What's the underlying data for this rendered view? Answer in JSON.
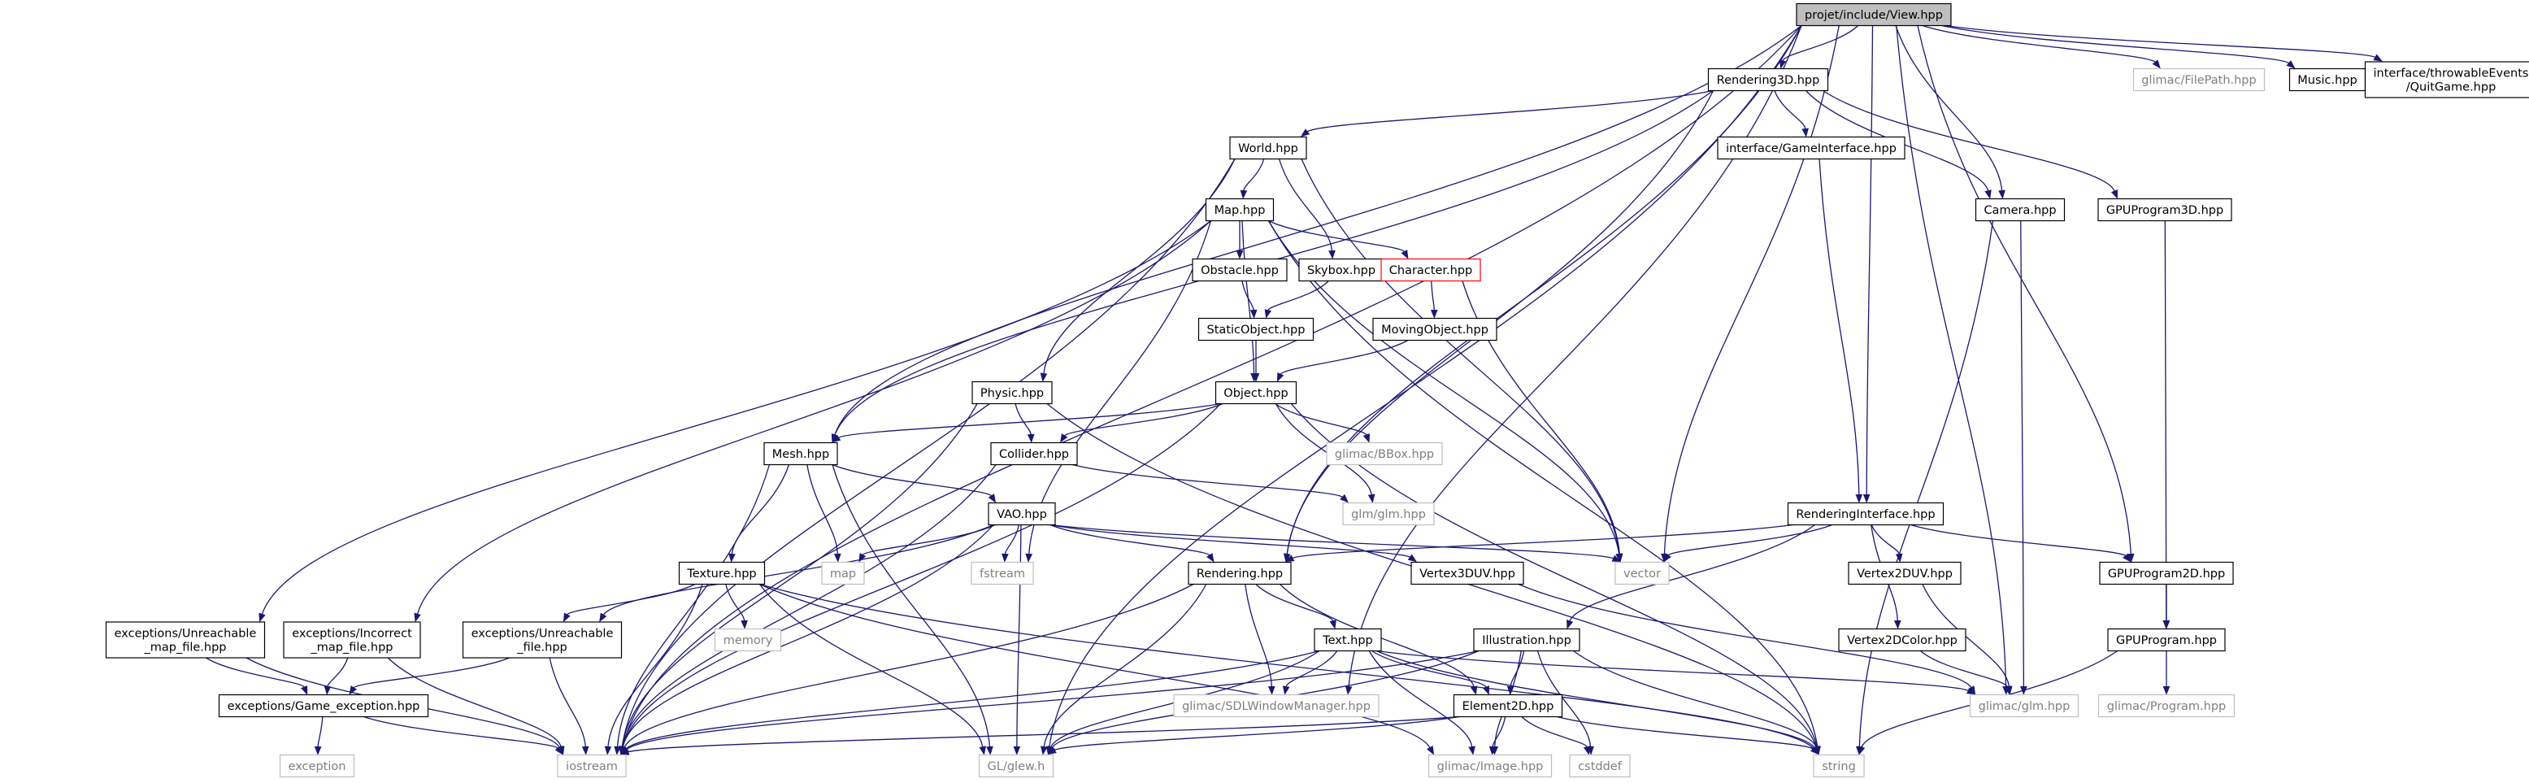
{
  "title": "projet/include/View.hpp",
  "colors": {
    "edge": "#191970",
    "root_fill": "#bfbfbf",
    "node_border": "#000000",
    "external_border": "#bfbfbf",
    "external_text": "#7f7f7f",
    "highlight_border": "#ff0000"
  },
  "nodes": [
    {
      "id": "view",
      "lines": [
        "projet/include/View.hpp"
      ],
      "style": "root"
    },
    {
      "id": "rendering3d",
      "lines": [
        "Rendering3D.hpp"
      ],
      "style": "normal"
    },
    {
      "id": "filepath",
      "lines": [
        "glimac/FilePath.hpp"
      ],
      "style": "external"
    },
    {
      "id": "music",
      "lines": [
        "Music.hpp"
      ],
      "style": "normal"
    },
    {
      "id": "quitgame",
      "lines": [
        "interface/throwableEvents",
        "/QuitGame.hpp"
      ],
      "style": "normal"
    },
    {
      "id": "world",
      "lines": [
        "World.hpp"
      ],
      "style": "normal"
    },
    {
      "id": "gameinterface",
      "lines": [
        "interface/GameInterface.hpp"
      ],
      "style": "normal"
    },
    {
      "id": "map",
      "lines": [
        "Map.hpp"
      ],
      "style": "normal"
    },
    {
      "id": "camera",
      "lines": [
        "Camera.hpp"
      ],
      "style": "normal"
    },
    {
      "id": "gpuprogram3d",
      "lines": [
        "GPUProgram3D.hpp"
      ],
      "style": "normal"
    },
    {
      "id": "obstacle",
      "lines": [
        "Obstacle.hpp"
      ],
      "style": "normal"
    },
    {
      "id": "skybox",
      "lines": [
        "Skybox.hpp"
      ],
      "style": "normal"
    },
    {
      "id": "character",
      "lines": [
        "Character.hpp"
      ],
      "style": "highlight"
    },
    {
      "id": "staticobject",
      "lines": [
        "StaticObject.hpp"
      ],
      "style": "normal"
    },
    {
      "id": "movingobject",
      "lines": [
        "MovingObject.hpp"
      ],
      "style": "normal"
    },
    {
      "id": "physic",
      "lines": [
        "Physic.hpp"
      ],
      "style": "normal"
    },
    {
      "id": "object",
      "lines": [
        "Object.hpp"
      ],
      "style": "normal"
    },
    {
      "id": "mesh",
      "lines": [
        "Mesh.hpp"
      ],
      "style": "normal"
    },
    {
      "id": "collider",
      "lines": [
        "Collider.hpp"
      ],
      "style": "normal"
    },
    {
      "id": "bbox",
      "lines": [
        "glimac/BBox.hpp"
      ],
      "style": "external"
    },
    {
      "id": "glmglm",
      "lines": [
        "glm/glm.hpp"
      ],
      "style": "external"
    },
    {
      "id": "vao",
      "lines": [
        "VAO.hpp"
      ],
      "style": "normal"
    },
    {
      "id": "renderinginterface",
      "lines": [
        "RenderingInterface.hpp"
      ],
      "style": "normal"
    },
    {
      "id": "mapstd",
      "lines": [
        "map"
      ],
      "style": "external"
    },
    {
      "id": "fstream",
      "lines": [
        "fstream"
      ],
      "style": "external"
    },
    {
      "id": "rendering",
      "lines": [
        "Rendering.hpp"
      ],
      "style": "normal"
    },
    {
      "id": "vertex3duv",
      "lines": [
        "Vertex3DUV.hpp"
      ],
      "style": "normal"
    },
    {
      "id": "vector",
      "lines": [
        "vector"
      ],
      "style": "external"
    },
    {
      "id": "vertex2duv",
      "lines": [
        "Vertex2DUV.hpp"
      ],
      "style": "normal"
    },
    {
      "id": "gpuprogram2d",
      "lines": [
        "GPUProgram2D.hpp"
      ],
      "style": "normal"
    },
    {
      "id": "texture",
      "lines": [
        "Texture.hpp"
      ],
      "style": "normal"
    },
    {
      "id": "memory",
      "lines": [
        "memory"
      ],
      "style": "external"
    },
    {
      "id": "unreach_map",
      "lines": [
        "exceptions/Unreachable",
        "_map_file.hpp"
      ],
      "style": "normal"
    },
    {
      "id": "incorrect_map",
      "lines": [
        "exceptions/Incorrect",
        "_map_file.hpp"
      ],
      "style": "normal"
    },
    {
      "id": "unreach_file",
      "lines": [
        "exceptions/Unreachable",
        "_file.hpp"
      ],
      "style": "normal"
    },
    {
      "id": "illustration",
      "lines": [
        "Illustration.hpp"
      ],
      "style": "normal"
    },
    {
      "id": "text",
      "lines": [
        "Text.hpp"
      ],
      "style": "normal"
    },
    {
      "id": "vertex2dcolor",
      "lines": [
        "Vertex2DColor.hpp"
      ],
      "style": "normal"
    },
    {
      "id": "gpuprogram",
      "lines": [
        "GPUProgram.hpp"
      ],
      "style": "normal"
    },
    {
      "id": "game_exception",
      "lines": [
        "exceptions/Game_exception.hpp"
      ],
      "style": "normal"
    },
    {
      "id": "sdlwm",
      "lines": [
        "glimac/SDLWindowManager.hpp"
      ],
      "style": "external"
    },
    {
      "id": "element2d",
      "lines": [
        "Element2D.hpp"
      ],
      "style": "normal"
    },
    {
      "id": "glimacglm",
      "lines": [
        "glimac/glm.hpp"
      ],
      "style": "external"
    },
    {
      "id": "program",
      "lines": [
        "glimac/Program.hpp"
      ],
      "style": "external"
    },
    {
      "id": "exception",
      "lines": [
        "exception"
      ],
      "style": "external"
    },
    {
      "id": "iostream",
      "lines": [
        "iostream"
      ],
      "style": "external"
    },
    {
      "id": "glew",
      "lines": [
        "GL/glew.h"
      ],
      "style": "external"
    },
    {
      "id": "image",
      "lines": [
        "glimac/Image.hpp"
      ],
      "style": "external"
    },
    {
      "id": "cstddef",
      "lines": [
        "cstddef"
      ],
      "style": "external"
    },
    {
      "id": "string",
      "lines": [
        "string"
      ],
      "style": "external"
    }
  ],
  "edges": [
    [
      "view",
      "rendering3d"
    ],
    [
      "view",
      "filepath"
    ],
    [
      "view",
      "music"
    ],
    [
      "view",
      "quitgame"
    ],
    [
      "view",
      "camera"
    ],
    [
      "view",
      "gpuprogram2d"
    ],
    [
      "view",
      "renderinginterface"
    ],
    [
      "view",
      "vector"
    ],
    [
      "view",
      "glimacglm"
    ],
    [
      "view",
      "mesh"
    ],
    [
      "view",
      "iostream"
    ],
    [
      "view",
      "glew"
    ],
    [
      "view",
      "rendering"
    ],
    [
      "view",
      "sdlwm"
    ],
    [
      "rendering3d",
      "world"
    ],
    [
      "rendering3d",
      "gameinterface"
    ],
    [
      "rendering3d",
      "camera"
    ],
    [
      "rendering3d",
      "gpuprogram3d"
    ],
    [
      "rendering3d",
      "rendering"
    ],
    [
      "rendering3d",
      "mesh"
    ],
    [
      "world",
      "map"
    ],
    [
      "world",
      "skybox"
    ],
    [
      "world",
      "physic"
    ],
    [
      "world",
      "vector"
    ],
    [
      "world",
      "iostream"
    ],
    [
      "gameinterface",
      "renderinginterface"
    ],
    [
      "map",
      "obstacle"
    ],
    [
      "map",
      "character"
    ],
    [
      "map",
      "object"
    ],
    [
      "map",
      "vector"
    ],
    [
      "map",
      "string"
    ],
    [
      "map",
      "fstream"
    ],
    [
      "map",
      "unreach_map"
    ],
    [
      "map",
      "incorrect_map"
    ],
    [
      "camera",
      "glimacglm"
    ],
    [
      "camera",
      "string"
    ],
    [
      "gpuprogram3d",
      "gpuprogram"
    ],
    [
      "obstacle",
      "staticobject"
    ],
    [
      "skybox",
      "staticobject"
    ],
    [
      "character",
      "movingobject"
    ],
    [
      "character",
      "vector"
    ],
    [
      "staticobject",
      "object"
    ],
    [
      "movingobject",
      "object"
    ],
    [
      "physic",
      "collider"
    ],
    [
      "physic",
      "iostream"
    ],
    [
      "physic",
      "string"
    ],
    [
      "object",
      "mesh"
    ],
    [
      "object",
      "collider"
    ],
    [
      "object",
      "bbox"
    ],
    [
      "object",
      "glmglm"
    ],
    [
      "object",
      "iostream"
    ],
    [
      "object",
      "string"
    ],
    [
      "mesh",
      "vao"
    ],
    [
      "mesh",
      "texture"
    ],
    [
      "mesh",
      "mapstd"
    ],
    [
      "mesh",
      "glew"
    ],
    [
      "mesh",
      "iostream"
    ],
    [
      "collider",
      "glmglm"
    ],
    [
      "collider",
      "iostream"
    ],
    [
      "vao",
      "mapstd"
    ],
    [
      "vao",
      "fstream"
    ],
    [
      "vao",
      "rendering"
    ],
    [
      "vao",
      "vertex3duv"
    ],
    [
      "vao",
      "vector"
    ],
    [
      "vao",
      "iostream"
    ],
    [
      "vao",
      "glew"
    ],
    [
      "vao",
      "unreach_file"
    ],
    [
      "renderinginterface",
      "rendering"
    ],
    [
      "renderinginterface",
      "vector"
    ],
    [
      "renderinginterface",
      "vertex2duv"
    ],
    [
      "renderinginterface",
      "vertex2dcolor"
    ],
    [
      "renderinginterface",
      "illustration"
    ],
    [
      "renderinginterface",
      "gpuprogram2d"
    ],
    [
      "rendering",
      "text"
    ],
    [
      "rendering",
      "element2d"
    ],
    [
      "rendering",
      "sdlwm"
    ],
    [
      "rendering",
      "glew"
    ],
    [
      "rendering",
      "iostream"
    ],
    [
      "vertex3duv",
      "glimacglm"
    ],
    [
      "vertex2duv",
      "glimacglm"
    ],
    [
      "vertex2dcolor",
      "glimacglm"
    ],
    [
      "gpuprogram2d",
      "gpuprogram"
    ],
    [
      "texture",
      "memory"
    ],
    [
      "texture",
      "unreach_file"
    ],
    [
      "texture",
      "iostream"
    ],
    [
      "texture",
      "glew"
    ],
    [
      "texture",
      "image"
    ],
    [
      "texture",
      "string"
    ],
    [
      "unreach_map",
      "game_exception"
    ],
    [
      "unreach_map",
      "iostream"
    ],
    [
      "incorrect_map",
      "game_exception"
    ],
    [
      "incorrect_map",
      "iostream"
    ],
    [
      "unreach_file",
      "game_exception"
    ],
    [
      "unreach_file",
      "iostream"
    ],
    [
      "game_exception",
      "exception"
    ],
    [
      "game_exception",
      "iostream"
    ],
    [
      "illustration",
      "element2d"
    ],
    [
      "illustration",
      "iostream"
    ],
    [
      "illustration",
      "glew"
    ],
    [
      "illustration",
      "image"
    ],
    [
      "illustration",
      "cstddef"
    ],
    [
      "illustration",
      "string"
    ],
    [
      "text",
      "element2d"
    ],
    [
      "text",
      "sdlwm"
    ],
    [
      "text",
      "glimacglm"
    ],
    [
      "text",
      "iostream"
    ],
    [
      "text",
      "glew"
    ],
    [
      "text",
      "image"
    ],
    [
      "text",
      "string"
    ],
    [
      "element2d",
      "iostream"
    ],
    [
      "element2d",
      "glew"
    ],
    [
      "element2d",
      "image"
    ],
    [
      "element2d",
      "cstddef"
    ],
    [
      "element2d",
      "string"
    ],
    [
      "gpuprogram",
      "program"
    ],
    [
      "gpuprogram",
      "string"
    ]
  ]
}
